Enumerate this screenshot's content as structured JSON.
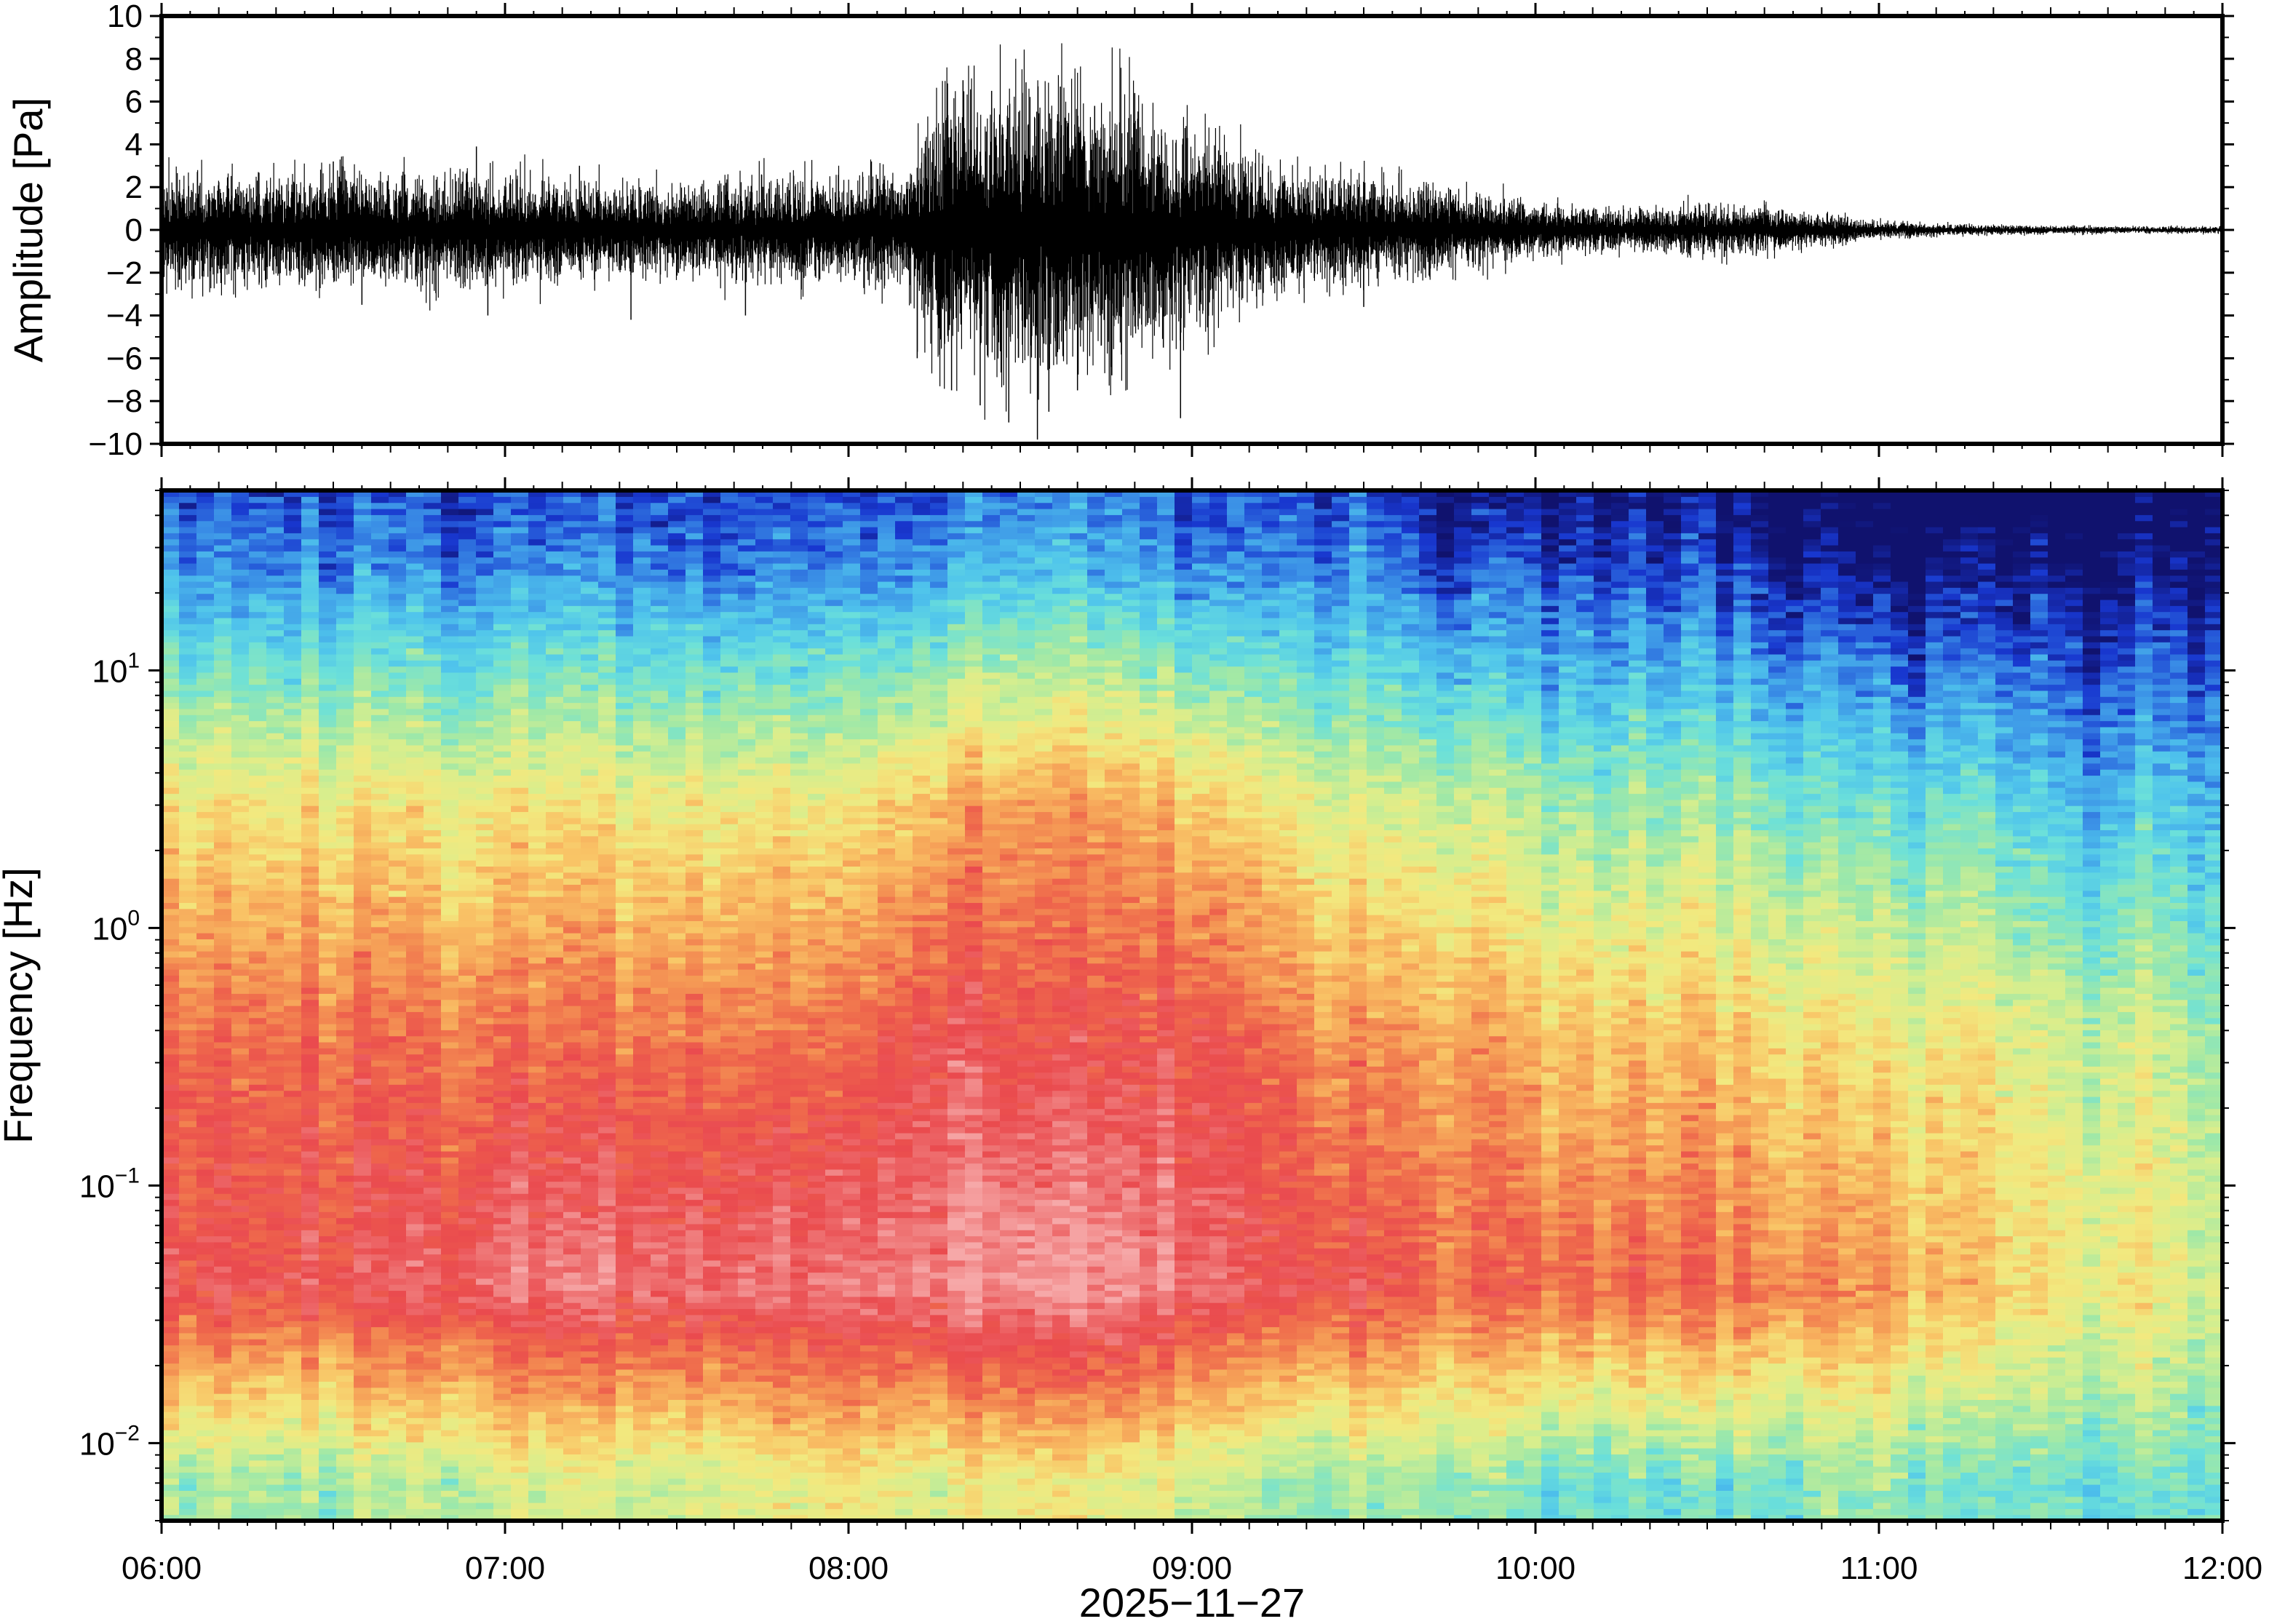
{
  "chart_data": [
    {
      "type": "line",
      "name": "waveform",
      "ylabel": "Amplitude [Pa]",
      "ylim": [
        -10,
        10
      ],
      "yticks": [
        -10,
        -8,
        -6,
        -4,
        -2,
        0,
        2,
        4,
        6,
        8,
        10
      ],
      "ytick_labels": [
        "−10",
        "−8",
        "−6",
        "−4",
        "−2",
        "0",
        "2",
        "4",
        "6",
        "8",
        "10"
      ],
      "xlim": [
        "06:00",
        "12:00"
      ],
      "grid": false,
      "color": "#000000",
      "envelope": {
        "time": [
          "06:00",
          "06:15",
          "06:30",
          "06:45",
          "07:00",
          "07:15",
          "07:30",
          "07:45",
          "08:00",
          "08:10",
          "08:15",
          "08:30",
          "08:45",
          "09:00",
          "09:15",
          "09:30",
          "09:45",
          "10:00",
          "10:15",
          "10:30",
          "10:45",
          "11:00",
          "11:15",
          "11:30",
          "11:45",
          "12:00"
        ],
        "amplitude": [
          1.6,
          1.5,
          1.7,
          1.6,
          1.6,
          1.4,
          1.3,
          1.4,
          1.6,
          1.7,
          3.8,
          4.2,
          4.0,
          3.0,
          1.7,
          1.6,
          1.2,
          0.8,
          0.6,
          0.7,
          0.6,
          0.25,
          0.15,
          0.12,
          0.1,
          0.1
        ]
      },
      "peaks": [
        {
          "time": "06:30",
          "value": 3.2
        },
        {
          "time": "06:35",
          "value": -3.5
        },
        {
          "time": "06:55",
          "value": 3.9
        },
        {
          "time": "06:57",
          "value": -4.0
        },
        {
          "time": "07:13",
          "value": 3.0
        },
        {
          "time": "07:22",
          "value": -4.2
        },
        {
          "time": "07:42",
          "value": -4.0
        },
        {
          "time": "08:04",
          "value": 3.2
        },
        {
          "time": "08:12",
          "value": -6.0
        },
        {
          "time": "08:18",
          "value": -7.5
        },
        {
          "time": "08:20",
          "value": 7.0
        },
        {
          "time": "08:23",
          "value": -8.2
        },
        {
          "time": "08:25",
          "value": 6.5
        },
        {
          "time": "08:28",
          "value": -9.0
        },
        {
          "time": "08:31",
          "value": 6.9
        },
        {
          "time": "08:33",
          "value": -9.8
        },
        {
          "time": "08:35",
          "value": -8.5
        },
        {
          "time": "08:37",
          "value": 6.7
        },
        {
          "time": "08:40",
          "value": -7.5
        },
        {
          "time": "08:43",
          "value": 5.8
        },
        {
          "time": "08:46",
          "value": -6.8
        },
        {
          "time": "08:50",
          "value": 6.4
        },
        {
          "time": "08:55",
          "value": -5.5
        },
        {
          "time": "08:58",
          "value": -8.8
        },
        {
          "time": "09:05",
          "value": 3.5
        },
        {
          "time": "09:30",
          "value": -3.6
        },
        {
          "time": "09:32",
          "value": 2.0
        },
        {
          "time": "10:28",
          "value": 0.9
        },
        {
          "time": "10:42",
          "value": 0.8
        }
      ]
    },
    {
      "type": "heatmap",
      "name": "spectrogram",
      "xlabel": "2025−11−27",
      "ylabel": "Frequency [Hz]",
      "yscale": "log",
      "ylim": [
        0.005,
        50
      ],
      "yticks": [
        0.01,
        0.1,
        1,
        10
      ],
      "ytick_labels": [
        {
          "base": "10",
          "exp": "−2"
        },
        {
          "base": "10",
          "exp": "−1"
        },
        {
          "base": "10",
          "exp": "0"
        },
        {
          "base": "10",
          "exp": "1"
        }
      ],
      "xlim": [
        "06:00",
        "12:00"
      ],
      "xticks": [
        "06:00",
        "07:00",
        "08:00",
        "09:00",
        "10:00",
        "11:00",
        "12:00"
      ],
      "grid": false,
      "colormap": "rainbow",
      "colorscale": [
        "#10126e",
        "#1837cf",
        "#3a8ee6",
        "#4fc4ec",
        "#6be0da",
        "#9ee8a8",
        "#d6ee8e",
        "#f2e97f",
        "#f9c466",
        "#f59a55",
        "#ef6a4c",
        "#ea4a4e",
        "#ef7878",
        "#f6a8a8"
      ],
      "time": [
        "06:00",
        "06:30",
        "07:00",
        "07:30",
        "08:00",
        "08:15",
        "08:30",
        "08:45",
        "09:00",
        "09:15",
        "09:30",
        "09:45",
        "10:00",
        "10:30",
        "11:00",
        "11:15",
        "11:30",
        "11:45",
        "12:00"
      ],
      "power_by_band": [
        {
          "band": "0.005-0.01 Hz",
          "levels": [
            5,
            5,
            6,
            6,
            7,
            6,
            7,
            7,
            6,
            5,
            5,
            5,
            4,
            4,
            5,
            4,
            4,
            4,
            4
          ]
        },
        {
          "band": "0.01-0.1 Hz",
          "levels": [
            11,
            11,
            12,
            12,
            12,
            12,
            13,
            13,
            12,
            11,
            11,
            10,
            10,
            10,
            9,
            8,
            7,
            7,
            6
          ]
        },
        {
          "band": "0.1-1 Hz",
          "levels": [
            10,
            10,
            10,
            10,
            10,
            11,
            11,
            11,
            11,
            10,
            9,
            9,
            8,
            8,
            7,
            7,
            6,
            6,
            5
          ]
        },
        {
          "band": "1-10 Hz",
          "levels": [
            7,
            7,
            7,
            7,
            7,
            8,
            9,
            9,
            8,
            7,
            6,
            6,
            5,
            5,
            4,
            4,
            3,
            3,
            3
          ]
        },
        {
          "band": "10-50 Hz",
          "levels": [
            2,
            2,
            2,
            2,
            2,
            2,
            3,
            3,
            2,
            2,
            2,
            1,
            1,
            1,
            0,
            0,
            0,
            0,
            0
          ]
        }
      ]
    }
  ]
}
